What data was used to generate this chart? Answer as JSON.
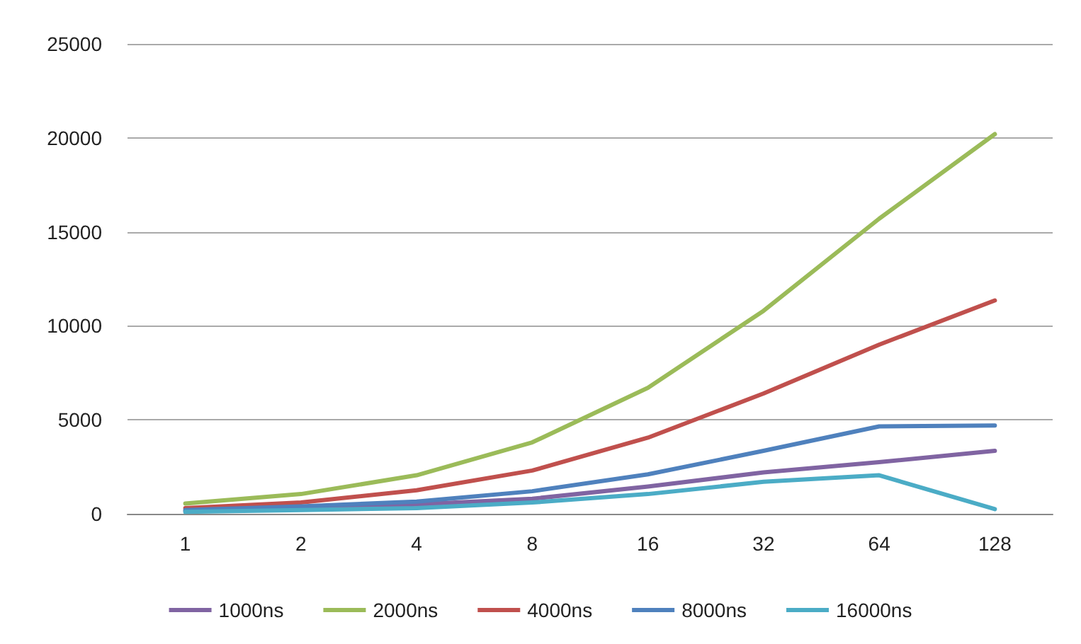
{
  "chart_data": {
    "type": "line",
    "categories": [
      "1",
      "2",
      "4",
      "8",
      "16",
      "32",
      "64",
      "128"
    ],
    "series": [
      {
        "name": "1000ns",
        "color": "#8064a2",
        "values": [
          150,
          300,
          500,
          800,
          1450,
          2200,
          2750,
          3350
        ]
      },
      {
        "name": "2000ns",
        "color": "#9bbb59",
        "values": [
          550,
          1050,
          2050,
          3800,
          6700,
          10800,
          15700,
          20200
        ]
      },
      {
        "name": "4000ns",
        "color": "#c0504d",
        "values": [
          300,
          600,
          1250,
          2300,
          4050,
          6400,
          9000,
          11350
        ]
      },
      {
        "name": "8000ns",
        "color": "#4f81bd",
        "values": [
          200,
          400,
          650,
          1200,
          2100,
          3350,
          4650,
          4700
        ]
      },
      {
        "name": "16000ns",
        "color": "#4bacc6",
        "values": [
          100,
          200,
          300,
          600,
          1050,
          1700,
          2050,
          250
        ]
      }
    ],
    "ylim": [
      0,
      25000
    ],
    "yticks": [
      0,
      5000,
      10000,
      15000,
      20000,
      25000
    ],
    "grid": "y",
    "legend": "bottom",
    "marker": "none",
    "line_style": "solid"
  }
}
